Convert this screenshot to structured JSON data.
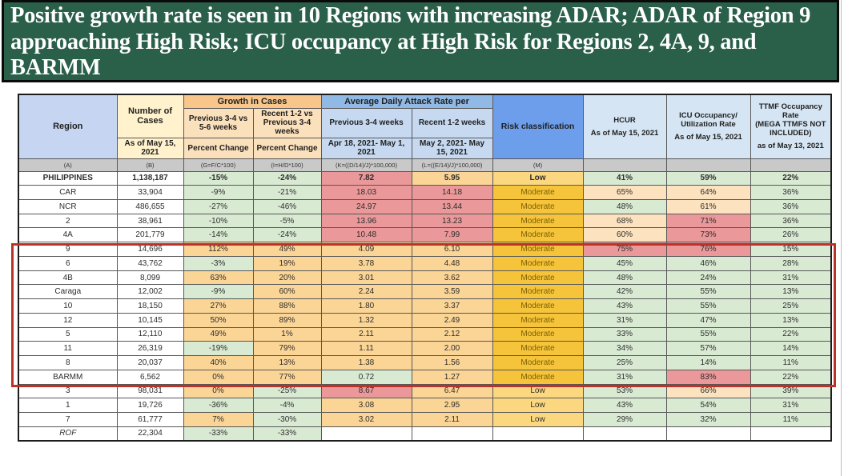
{
  "title": "Positive growth rate is seen in 10 Regions with increasing ADAR; ADAR of Region 9 approaching High Risk; ICU occupancy at High Risk for Regions 2, 4A, 9, and BARMM",
  "colors": {
    "title_background": "#2A5F4A",
    "title_text": "#FFFFFF",
    "highlight_box_border": "#BE3129",
    "cell_green": "#D9EAD3",
    "cell_orange": "#FBD596",
    "cell_light_orange": "#FCE2BE",
    "cell_red": "#EA9899",
    "risk_low": "#FBD77F",
    "risk_moderate": "#F5C43B",
    "header_region_blue": "#C5D5F2",
    "header_cases_yellow": "#FFF2CC",
    "header_growth_orange": "#F8C58A",
    "header_adar_blue": "#90BAE5",
    "header_risk_blue": "#6D9EEB",
    "header_info_blue": "#D5E5F4",
    "formula_row_gray": "#C9C9C9"
  },
  "table": {
    "header": {
      "region": "Region",
      "cases_title": "Number of Cases",
      "cases_sub": "As of May 15, 2021",
      "growth_band": "Growth in Cases",
      "growth_cols": [
        {
          "top": "Previous 3-4 vs 5-6 weeks",
          "bottom": "Percent Change"
        },
        {
          "top": "Recent 1-2 vs Previous 3-4 weeks",
          "bottom": "Percent Change"
        }
      ],
      "adar_band": "Average Daily Attack Rate per",
      "adar_cols": [
        {
          "top": "Previous 3-4 weeks",
          "bottom": "Apr 18, 2021- May 1, 2021"
        },
        {
          "top": "Recent 1-2 weeks",
          "bottom": "May 2, 2021- May 15, 2021"
        }
      ],
      "risk": "Risk classification",
      "hcur_title": "HCUR",
      "hcur_sub": "As of May 15, 2021",
      "icu_title": "ICU Occupancy/ Utilization Rate",
      "icu_sub": "As of May 15, 2021",
      "ttmf_title": "TTMF Occupancy Rate",
      "ttmf_note": "(MEGA TTMFS NOT INCLUDED)",
      "ttmf_sub": "as of May 13, 2021"
    },
    "formula_row": [
      "(A)",
      "(B)",
      "(G=F/C*100)",
      "(I=H/D*100)",
      "(K=((D/14)/J)*100,000)",
      "(L=((E/14)/J)*100,000)",
      "(M)",
      "",
      "",
      ""
    ],
    "rows": [
      {
        "region": "PHILIPPINES",
        "style": "bold",
        "cells": [
          {
            "v": "1,138,187",
            "c": "w"
          },
          {
            "v": "-15%",
            "c": "g"
          },
          {
            "v": "-24%",
            "c": "g"
          },
          {
            "v": "7.82",
            "c": "r"
          },
          {
            "v": "5.95",
            "c": "o"
          },
          {
            "v": "Low",
            "c": "low"
          },
          {
            "v": "41%",
            "c": "g"
          },
          {
            "v": "59%",
            "c": "g"
          },
          {
            "v": "22%",
            "c": "g"
          }
        ]
      },
      {
        "region": "CAR",
        "style": "",
        "cells": [
          {
            "v": "33,904",
            "c": "w"
          },
          {
            "v": "-9%",
            "c": "g"
          },
          {
            "v": "-21%",
            "c": "g"
          },
          {
            "v": "18.03",
            "c": "r"
          },
          {
            "v": "14.18",
            "c": "r"
          },
          {
            "v": "Moderate",
            "c": "mod"
          },
          {
            "v": "65%",
            "c": "lo"
          },
          {
            "v": "64%",
            "c": "lo"
          },
          {
            "v": "36%",
            "c": "g"
          }
        ]
      },
      {
        "region": "NCR",
        "style": "",
        "cells": [
          {
            "v": "486,655",
            "c": "w"
          },
          {
            "v": "-27%",
            "c": "g"
          },
          {
            "v": "-46%",
            "c": "g"
          },
          {
            "v": "24.97",
            "c": "r"
          },
          {
            "v": "13.44",
            "c": "r"
          },
          {
            "v": "Moderate",
            "c": "mod"
          },
          {
            "v": "48%",
            "c": "g"
          },
          {
            "v": "61%",
            "c": "lo"
          },
          {
            "v": "36%",
            "c": "g"
          }
        ]
      },
      {
        "region": "2",
        "style": "",
        "cells": [
          {
            "v": "38,961",
            "c": "w"
          },
          {
            "v": "-10%",
            "c": "g"
          },
          {
            "v": "-5%",
            "c": "g"
          },
          {
            "v": "13.96",
            "c": "r"
          },
          {
            "v": "13.23",
            "c": "r"
          },
          {
            "v": "Moderate",
            "c": "mod"
          },
          {
            "v": "68%",
            "c": "lo"
          },
          {
            "v": "71%",
            "c": "r"
          },
          {
            "v": "36%",
            "c": "g"
          }
        ]
      },
      {
        "region": "4A",
        "style": "",
        "cells": [
          {
            "v": "201,779",
            "c": "w"
          },
          {
            "v": "-14%",
            "c": "g"
          },
          {
            "v": "-24%",
            "c": "g"
          },
          {
            "v": "10.48",
            "c": "r"
          },
          {
            "v": "7.99",
            "c": "r"
          },
          {
            "v": "Moderate",
            "c": "mod"
          },
          {
            "v": "60%",
            "c": "lo"
          },
          {
            "v": "73%",
            "c": "r"
          },
          {
            "v": "26%",
            "c": "g"
          }
        ]
      },
      {
        "region": "9",
        "style": "",
        "cells": [
          {
            "v": "14,696",
            "c": "w"
          },
          {
            "v": "112%",
            "c": "o"
          },
          {
            "v": "49%",
            "c": "o"
          },
          {
            "v": "4.09",
            "c": "o"
          },
          {
            "v": "6.10",
            "c": "o"
          },
          {
            "v": "Moderate",
            "c": "mod"
          },
          {
            "v": "75%",
            "c": "r"
          },
          {
            "v": "76%",
            "c": "r"
          },
          {
            "v": "15%",
            "c": "g"
          }
        ]
      },
      {
        "region": "6",
        "style": "",
        "cells": [
          {
            "v": "43,762",
            "c": "w"
          },
          {
            "v": "-3%",
            "c": "g"
          },
          {
            "v": "19%",
            "c": "o"
          },
          {
            "v": "3.78",
            "c": "o"
          },
          {
            "v": "4.48",
            "c": "o"
          },
          {
            "v": "Moderate",
            "c": "mod"
          },
          {
            "v": "45%",
            "c": "g"
          },
          {
            "v": "46%",
            "c": "g"
          },
          {
            "v": "28%",
            "c": "g"
          }
        ]
      },
      {
        "region": "4B",
        "style": "",
        "cells": [
          {
            "v": "8,099",
            "c": "w"
          },
          {
            "v": "63%",
            "c": "o"
          },
          {
            "v": "20%",
            "c": "o"
          },
          {
            "v": "3.01",
            "c": "o"
          },
          {
            "v": "3.62",
            "c": "o"
          },
          {
            "v": "Moderate",
            "c": "mod"
          },
          {
            "v": "48%",
            "c": "g"
          },
          {
            "v": "24%",
            "c": "g"
          },
          {
            "v": "31%",
            "c": "g"
          }
        ]
      },
      {
        "region": "Caraga",
        "style": "",
        "cells": [
          {
            "v": "12,002",
            "c": "w"
          },
          {
            "v": "-9%",
            "c": "g"
          },
          {
            "v": "60%",
            "c": "o"
          },
          {
            "v": "2.24",
            "c": "o"
          },
          {
            "v": "3.59",
            "c": "o"
          },
          {
            "v": "Moderate",
            "c": "mod"
          },
          {
            "v": "42%",
            "c": "g"
          },
          {
            "v": "55%",
            "c": "g"
          },
          {
            "v": "13%",
            "c": "g"
          }
        ]
      },
      {
        "region": "10",
        "style": "",
        "cells": [
          {
            "v": "18,150",
            "c": "w"
          },
          {
            "v": "27%",
            "c": "o"
          },
          {
            "v": "88%",
            "c": "o"
          },
          {
            "v": "1.80",
            "c": "o"
          },
          {
            "v": "3.37",
            "c": "o"
          },
          {
            "v": "Moderate",
            "c": "mod"
          },
          {
            "v": "43%",
            "c": "g"
          },
          {
            "v": "55%",
            "c": "g"
          },
          {
            "v": "25%",
            "c": "g"
          }
        ]
      },
      {
        "region": "12",
        "style": "",
        "cells": [
          {
            "v": "10,145",
            "c": "w"
          },
          {
            "v": "50%",
            "c": "o"
          },
          {
            "v": "89%",
            "c": "o"
          },
          {
            "v": "1.32",
            "c": "o"
          },
          {
            "v": "2.49",
            "c": "o"
          },
          {
            "v": "Moderate",
            "c": "mod"
          },
          {
            "v": "31%",
            "c": "g"
          },
          {
            "v": "47%",
            "c": "g"
          },
          {
            "v": "13%",
            "c": "g"
          }
        ]
      },
      {
        "region": "5",
        "style": "",
        "cells": [
          {
            "v": "12,110",
            "c": "w"
          },
          {
            "v": "49%",
            "c": "o"
          },
          {
            "v": "1%",
            "c": "o"
          },
          {
            "v": "2.11",
            "c": "o"
          },
          {
            "v": "2.12",
            "c": "o"
          },
          {
            "v": "Moderate",
            "c": "mod"
          },
          {
            "v": "33%",
            "c": "g"
          },
          {
            "v": "55%",
            "c": "g"
          },
          {
            "v": "22%",
            "c": "g"
          }
        ]
      },
      {
        "region": "11",
        "style": "",
        "cells": [
          {
            "v": "26,319",
            "c": "w"
          },
          {
            "v": "-19%",
            "c": "g"
          },
          {
            "v": "79%",
            "c": "o"
          },
          {
            "v": "1.11",
            "c": "o"
          },
          {
            "v": "2.00",
            "c": "o"
          },
          {
            "v": "Moderate",
            "c": "mod"
          },
          {
            "v": "34%",
            "c": "g"
          },
          {
            "v": "57%",
            "c": "g"
          },
          {
            "v": "14%",
            "c": "g"
          }
        ]
      },
      {
        "region": "8",
        "style": "",
        "cells": [
          {
            "v": "20,037",
            "c": "w"
          },
          {
            "v": "40%",
            "c": "o"
          },
          {
            "v": "13%",
            "c": "o"
          },
          {
            "v": "1.38",
            "c": "o"
          },
          {
            "v": "1.56",
            "c": "o"
          },
          {
            "v": "Moderate",
            "c": "mod"
          },
          {
            "v": "25%",
            "c": "g"
          },
          {
            "v": "14%",
            "c": "g"
          },
          {
            "v": "11%",
            "c": "g"
          }
        ]
      },
      {
        "region": "BARMM",
        "style": "",
        "cells": [
          {
            "v": "6,562",
            "c": "w"
          },
          {
            "v": "0%",
            "c": "o"
          },
          {
            "v": "77%",
            "c": "o"
          },
          {
            "v": "0.72",
            "c": "g"
          },
          {
            "v": "1.27",
            "c": "o"
          },
          {
            "v": "Moderate",
            "c": "mod"
          },
          {
            "v": "31%",
            "c": "g"
          },
          {
            "v": "83%",
            "c": "r"
          },
          {
            "v": "22%",
            "c": "g"
          }
        ]
      },
      {
        "region": "3",
        "style": "",
        "cells": [
          {
            "v": "98,031",
            "c": "w"
          },
          {
            "v": "0%",
            "c": "o"
          },
          {
            "v": "-25%",
            "c": "g"
          },
          {
            "v": "8.67",
            "c": "r"
          },
          {
            "v": "6.47",
            "c": "o"
          },
          {
            "v": "Low",
            "c": "low"
          },
          {
            "v": "53%",
            "c": "g"
          },
          {
            "v": "66%",
            "c": "lo"
          },
          {
            "v": "39%",
            "c": "g"
          }
        ]
      },
      {
        "region": "1",
        "style": "",
        "cells": [
          {
            "v": "19,726",
            "c": "w"
          },
          {
            "v": "-36%",
            "c": "g"
          },
          {
            "v": "-4%",
            "c": "g"
          },
          {
            "v": "3.08",
            "c": "o"
          },
          {
            "v": "2.95",
            "c": "o"
          },
          {
            "v": "Low",
            "c": "low"
          },
          {
            "v": "43%",
            "c": "g"
          },
          {
            "v": "54%",
            "c": "g"
          },
          {
            "v": "31%",
            "c": "g"
          }
        ]
      },
      {
        "region": "7",
        "style": "",
        "cells": [
          {
            "v": "61,777",
            "c": "w"
          },
          {
            "v": "7%",
            "c": "o"
          },
          {
            "v": "-30%",
            "c": "g"
          },
          {
            "v": "3.02",
            "c": "o"
          },
          {
            "v": "2.11",
            "c": "o"
          },
          {
            "v": "Low",
            "c": "low"
          },
          {
            "v": "29%",
            "c": "g"
          },
          {
            "v": "32%",
            "c": "g"
          },
          {
            "v": "11%",
            "c": "g"
          }
        ]
      },
      {
        "region": "ROF",
        "style": "italic",
        "cells": [
          {
            "v": "22,304",
            "c": "w"
          },
          {
            "v": "-33%",
            "c": "g"
          },
          {
            "v": "-33%",
            "c": "g"
          },
          {
            "v": "",
            "c": "w"
          },
          {
            "v": "",
            "c": "w"
          },
          {
            "v": "",
            "c": "w"
          },
          {
            "v": "",
            "c": "w"
          },
          {
            "v": "",
            "c": "w"
          },
          {
            "v": "",
            "c": "w"
          }
        ]
      }
    ]
  }
}
